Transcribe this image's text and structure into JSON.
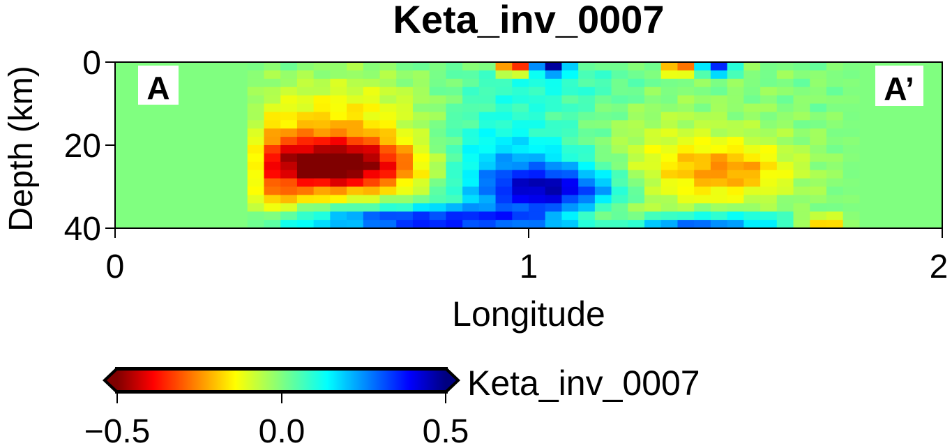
{
  "chart_data": {
    "type": "heatmap",
    "title": "Keta_inv_0007",
    "xlabel": "Longitude",
    "ylabel": "Depth (km)",
    "xlim": [
      0,
      2
    ],
    "ylim": [
      0,
      40
    ],
    "x_ticks": [
      "0",
      "1",
      "2"
    ],
    "y_ticks": [
      "0",
      "20",
      "40"
    ],
    "profile_labels": {
      "start": "A",
      "end": "A’"
    },
    "colorbar": {
      "label": "Keta_inv_0007",
      "range": [
        -0.5,
        0.5
      ],
      "ticks": [
        "−0.5",
        "0.0",
        "0.5"
      ],
      "colormap": "jet"
    },
    "blobs": [
      {
        "x": 0.55,
        "z": 25,
        "sx": 0.15,
        "sz": 4.5,
        "v": -0.9
      },
      {
        "x": 0.5,
        "z": 21,
        "sx": 0.25,
        "sz": 7,
        "v": -0.4
      },
      {
        "x": 1.05,
        "z": 31,
        "sx": 0.13,
        "sz": 4,
        "v": 0.9
      },
      {
        "x": 0.92,
        "z": 24,
        "sx": 0.2,
        "sz": 5,
        "v": 0.35
      },
      {
        "x": 0.75,
        "z": 38,
        "sx": 0.22,
        "sz": 2.2,
        "v": 0.75
      },
      {
        "x": 1.35,
        "z": 39,
        "sx": 0.2,
        "sz": 2,
        "v": 0.7
      },
      {
        "x": 0.9,
        "z": 15,
        "sx": 0.18,
        "sz": 7,
        "v": 0.25
      },
      {
        "x": 1.33,
        "z": 26,
        "sx": 0.18,
        "sz": 9,
        "v": -0.3
      },
      {
        "x": 1.5,
        "z": 26,
        "sx": 0.1,
        "sz": 4,
        "v": -0.3
      },
      {
        "x": 0.62,
        "z": 10,
        "sx": 0.18,
        "sz": 5,
        "v": -0.2
      },
      {
        "x": 1.05,
        "z": 5,
        "sx": 0.15,
        "sz": 4,
        "v": 0.15
      },
      {
        "x": 0.97,
        "z": 1,
        "sx": 0.03,
        "sz": 1.5,
        "v": -0.9
      },
      {
        "x": 1.05,
        "z": 1,
        "sx": 0.03,
        "sz": 1.5,
        "v": 0.9
      },
      {
        "x": 1.37,
        "z": 1,
        "sx": 0.03,
        "sz": 1.5,
        "v": -0.7
      },
      {
        "x": 1.45,
        "z": 1,
        "sx": 0.03,
        "sz": 1.5,
        "v": 0.8
      },
      {
        "x": 1.72,
        "z": 39,
        "sx": 0.05,
        "sz": 1.5,
        "v": -0.6
      },
      {
        "x": 1.2,
        "z": 38,
        "sx": 0.1,
        "sz": 2,
        "v": -0.5
      },
      {
        "x": 0.35,
        "z": 33,
        "sx": 0.08,
        "sz": 3,
        "v": -0.3
      }
    ]
  }
}
